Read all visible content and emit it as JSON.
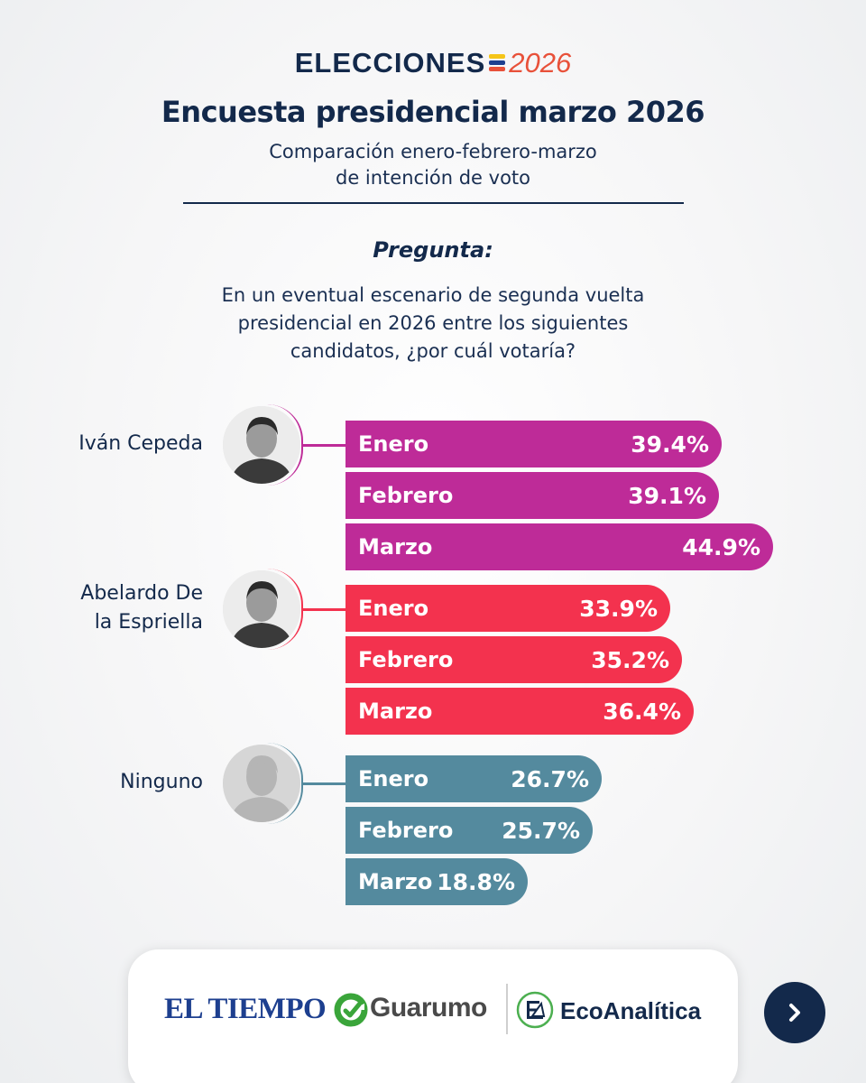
{
  "header": {
    "logo_word": "ELECCIONES",
    "logo_year": "2026",
    "title": "Encuesta presidencial marzo 2026",
    "subtitle_line1": "Comparación enero-febrero-marzo",
    "subtitle_line2": "de intención de voto"
  },
  "question": {
    "label": "Pregunta:",
    "line1": "En un eventual escenario de segunda vuelta",
    "line2": "presidencial en 2026 entre los siguientes",
    "line3": "candidatos, ¿por cuál votaría?"
  },
  "chart_data": {
    "type": "bar",
    "orientation": "horizontal",
    "categories": [
      "Enero",
      "Febrero",
      "Marzo"
    ],
    "unit": "%",
    "series": [
      {
        "name": "Iván Cepeda",
        "name_lines": [
          "Iván Cepeda"
        ],
        "color": "#be2b98",
        "values": [
          39.4,
          39.1,
          44.9
        ],
        "labels": [
          "39.4%",
          "39.1%",
          "44.9%"
        ]
      },
      {
        "name": "Abelardo De la Espriella",
        "name_lines": [
          "Abelardo De",
          "la Espriella"
        ],
        "color": "#f3324e",
        "values": [
          33.9,
          35.2,
          36.4
        ],
        "labels": [
          "33.9%",
          "35.2%",
          "36.4%"
        ]
      },
      {
        "name": "Ninguno",
        "name_lines": [
          "Ninguno"
        ],
        "color": "#548a9e",
        "values": [
          26.7,
          25.7,
          18.8
        ],
        "labels": [
          "26.7%",
          "25.7%",
          "18.8%"
        ]
      }
    ]
  },
  "footer": {
    "brand_tiempo": "EL TIEMPO",
    "brand_guarumo": "Guarumo",
    "brand_eco": "EcoAnalítica",
    "next_icon": "chevron-right-icon"
  },
  "colors": {
    "navy": "#13294b",
    "flag_yellow": "#f5c518",
    "flag_blue": "#1d3f8f",
    "flag_red": "#e8513a"
  }
}
